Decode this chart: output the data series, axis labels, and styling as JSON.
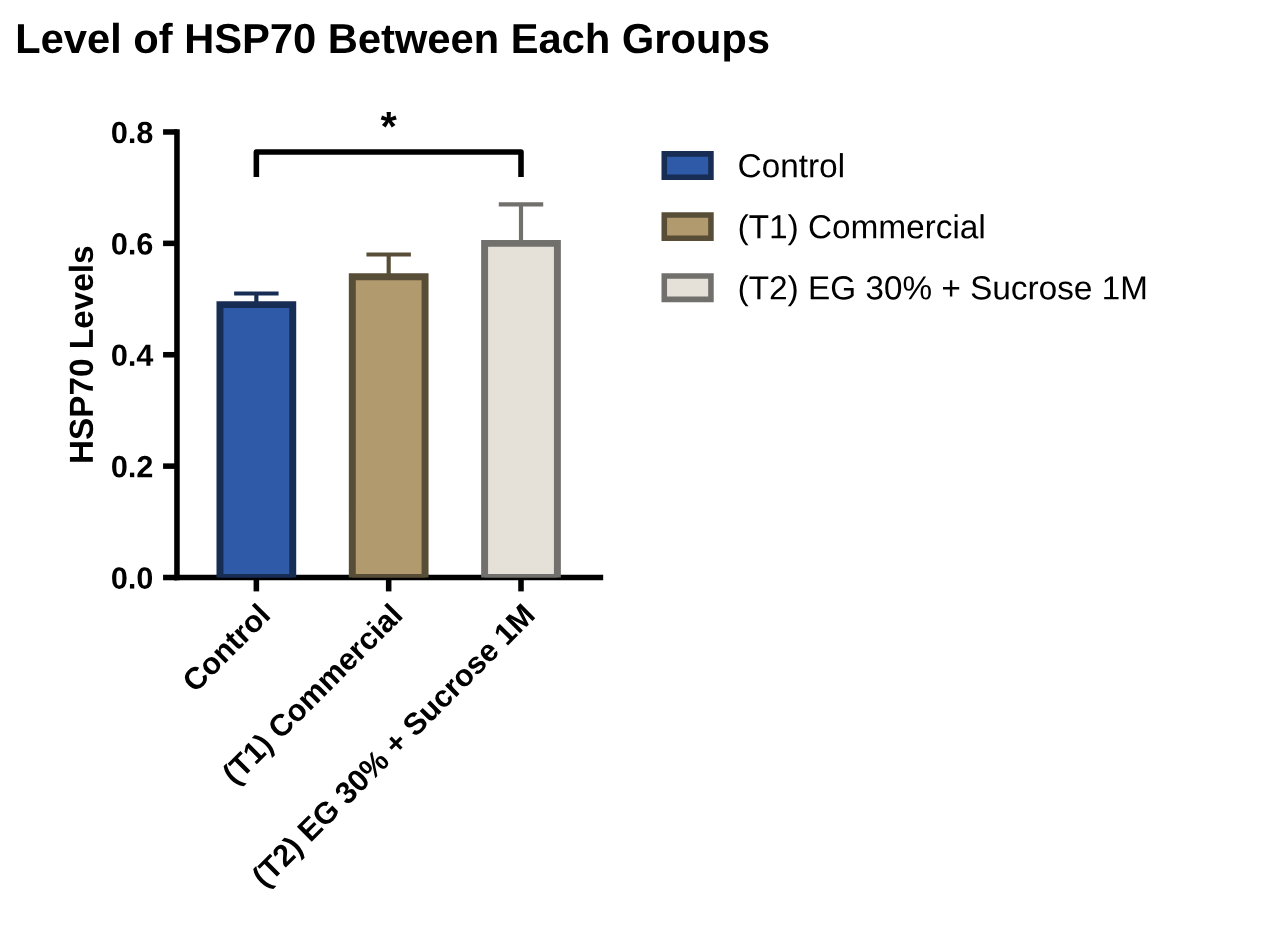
{
  "chart_data": {
    "type": "bar",
    "title": "Level of HSP70 Between Each Groups",
    "ylabel": "HSP70 Levels",
    "categories": [
      "Control",
      "(T1) Commercial",
      "(T2) EG 30% + Sucrose 1M"
    ],
    "series": [
      {
        "name": "Control",
        "color": "#2e5aa8",
        "values": [
          0.49,
          null,
          null
        ],
        "errors": [
          0.02,
          null,
          null
        ]
      },
      {
        "name": "(T1) Commercial",
        "color": "#b09a6e",
        "values": [
          null,
          0.54,
          null
        ],
        "errors": [
          null,
          0.04,
          null
        ]
      },
      {
        "name": "(T2) EG 30% + Sucrose 1M",
        "color": "#e5e1d9",
        "values": [
          null,
          null,
          0.6
        ],
        "errors": [
          null,
          null,
          0.07
        ]
      }
    ],
    "ylim": [
      0,
      0.8
    ],
    "yticks": [
      {
        "value": 0,
        "label": "0.0"
      },
      {
        "value": 0.2,
        "label": "0.2"
      },
      {
        "value": 0.4,
        "label": "0.4"
      },
      {
        "value": 0.6,
        "label": "0.6"
      },
      {
        "value": 0.8,
        "label": "0.8"
      }
    ],
    "annotations": [
      "*"
    ],
    "grid": false,
    "legend": "top right"
  }
}
